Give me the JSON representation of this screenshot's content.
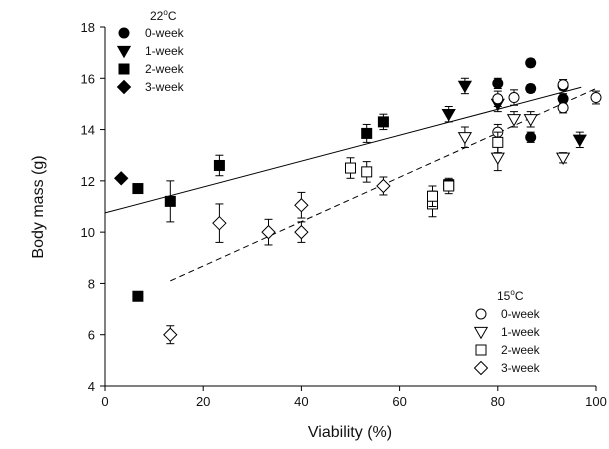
{
  "chart_data": {
    "type": "scatter",
    "xlabel": "Viability (%)",
    "ylabel": "Body mass (g)",
    "xlim": [
      0,
      100
    ],
    "ylim": [
      4,
      18
    ],
    "xticks": [
      "0",
      "20",
      "40",
      "60",
      "80",
      "100"
    ],
    "yticks": [
      "4",
      "6",
      "8",
      "10",
      "12",
      "14",
      "16",
      "18"
    ],
    "grid": false,
    "legends": [
      {
        "title": "22°C",
        "placement": "top-left",
        "entries": [
          {
            "label": "0-week",
            "marker": "circle",
            "filled": true
          },
          {
            "label": "1-week",
            "marker": "triangle-down",
            "filled": true
          },
          {
            "label": "2-week",
            "marker": "square",
            "filled": true
          },
          {
            "label": "3-week",
            "marker": "diamond",
            "filled": true
          }
        ]
      },
      {
        "title": "15°C",
        "placement": "bottom-right",
        "entries": [
          {
            "label": "0-week",
            "marker": "circle",
            "filled": false
          },
          {
            "label": "1-week",
            "marker": "triangle-down",
            "filled": false
          },
          {
            "label": "2-week",
            "marker": "square",
            "filled": false
          },
          {
            "label": "3-week",
            "marker": "diamond",
            "filled": false
          }
        ]
      }
    ],
    "series": [
      {
        "temp": "22",
        "week": "0",
        "marker": "circle",
        "filled": true,
        "points": [
          [
            80,
            15.8,
            0.2
          ],
          [
            86.7,
            16.6,
            0.15
          ],
          [
            86.7,
            15.6,
            0.15
          ],
          [
            86.7,
            13.7,
            0.2
          ],
          [
            93.3,
            15.7,
            0.15
          ],
          [
            93.3,
            15.2,
            0.2
          ]
        ]
      },
      {
        "temp": "22",
        "week": "1",
        "marker": "triangle-down",
        "filled": true,
        "points": [
          [
            73.3,
            15.7,
            0.3
          ],
          [
            70,
            14.6,
            0.3
          ],
          [
            80,
            15.0,
            0.3
          ],
          [
            96.7,
            13.6,
            0.3
          ]
        ]
      },
      {
        "temp": "22",
        "week": "2",
        "marker": "square",
        "filled": true,
        "points": [
          [
            6.7,
            11.7,
            0
          ],
          [
            6.7,
            7.5,
            0
          ],
          [
            13.3,
            11.2,
            0.8
          ],
          [
            23.3,
            12.6,
            0.4
          ],
          [
            53.3,
            13.85,
            0.35
          ],
          [
            56.7,
            14.3,
            0.3
          ],
          [
            70,
            11.85,
            0.2
          ]
        ]
      },
      {
        "temp": "22",
        "week": "3",
        "marker": "diamond",
        "filled": true,
        "points": [
          [
            3.3,
            12.1,
            0
          ]
        ]
      },
      {
        "temp": "15",
        "week": "0",
        "marker": "circle",
        "filled": false,
        "points": [
          [
            80,
            15.2,
            0.3
          ],
          [
            80,
            13.9,
            0.3
          ],
          [
            83.3,
            15.25,
            0.3
          ],
          [
            93.3,
            15.75,
            0.2
          ],
          [
            93.3,
            14.85,
            0.2
          ],
          [
            100,
            15.25,
            0.25
          ]
        ]
      },
      {
        "temp": "15",
        "week": "1",
        "marker": "triangle-down",
        "filled": false,
        "points": [
          [
            73.3,
            13.7,
            0.4
          ],
          [
            80,
            12.9,
            0.5
          ],
          [
            83.3,
            14.4,
            0.3
          ],
          [
            86.7,
            14.4,
            0.3
          ],
          [
            93.3,
            12.9,
            0.2
          ]
        ]
      },
      {
        "temp": "15",
        "week": "2",
        "marker": "square",
        "filled": false,
        "points": [
          [
            50,
            12.5,
            0.4
          ],
          [
            53.3,
            12.35,
            0.4
          ],
          [
            66.7,
            11.1,
            0.5
          ],
          [
            66.7,
            11.4,
            0.4
          ],
          [
            70,
            11.8,
            0.3
          ],
          [
            80,
            13.5,
            0.4
          ]
        ]
      },
      {
        "temp": "15",
        "week": "3",
        "marker": "diamond",
        "filled": false,
        "points": [
          [
            13.3,
            6.0,
            0.35
          ],
          [
            23.3,
            10.35,
            0.75
          ],
          [
            33.3,
            10.0,
            0.5
          ],
          [
            40,
            11.05,
            0.5
          ],
          [
            40,
            10.0,
            0.4
          ],
          [
            56.7,
            11.8,
            0.35
          ]
        ]
      }
    ],
    "regression_lines": [
      {
        "name": "22",
        "style": "solid",
        "x": [
          0,
          97
        ],
        "y": [
          10.75,
          15.65
        ]
      },
      {
        "name": "15",
        "style": "dashed",
        "x": [
          13.3,
          100
        ],
        "y": [
          8.1,
          15.6
        ]
      }
    ]
  }
}
